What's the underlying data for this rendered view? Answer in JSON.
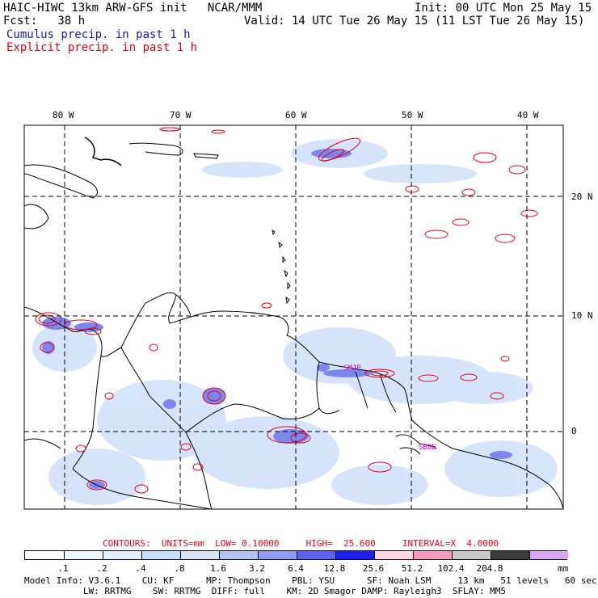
{
  "header": {
    "title_left": "HAIC-HIWC 13km ARW-GFS init   NCAR/MMM",
    "init": "Init: 00 UTC Mon 25 May 15",
    "fcst_label": "Fcst:   38 h",
    "valid": "Valid: 14 UTC Tue 26 May 15 (11 LST Tue 26 May 15)",
    "cumulus_label": "Cumulus precip. in past 1 h",
    "explicit_label": "Explicit precip. in past 1 h"
  },
  "map": {
    "lon_labels": [
      "80 W",
      "70 W",
      "60 W",
      "50 W",
      "40 W"
    ],
    "lat_labels": [
      "20 N",
      "10 N",
      "0"
    ],
    "station_labels": [
      "SMJP",
      "SBBE"
    ]
  },
  "contours": {
    "label": "CONTOURS:  UNITS=mm  LOW= 0.10000     HIGH=  25.600     INTERVAL=X  4.0000"
  },
  "colorbar": {
    "labels": [
      ".1",
      ".2",
      ".4",
      ".8",
      "1.6",
      "3.2",
      "6.4",
      "12.8",
      "25.6",
      "51.2",
      "102.4",
      "204.8"
    ],
    "units": "mm",
    "colors": [
      "#ffffff",
      "#f0f6ff",
      "#e0eefd",
      "#c8dff9",
      "#d9e6fa",
      "#b3c4f4",
      "#8f9df0",
      "#5d63ee",
      "#1f1ff0",
      "#ffd8e8",
      "#f59cc0",
      "#c8c8c8",
      "#3c3c3c",
      "#d9a8f5"
    ]
  },
  "model_info": {
    "line1": "Model Info: V3.6.1    CU: KF      MP: Thompson    PBL: YSU      SF: Noah LSM     13 km   51 levels   60 sec",
    "line2": "           LW: RRTMG    SW: RRTMG  DIFF: full    KM: 2D Smagor DAMP: Rayleigh3  SFLAY: MM5"
  },
  "colors": {
    "cumulus": "#1a1aa8",
    "explicit": "#e0001a",
    "station": "#d000d0"
  }
}
